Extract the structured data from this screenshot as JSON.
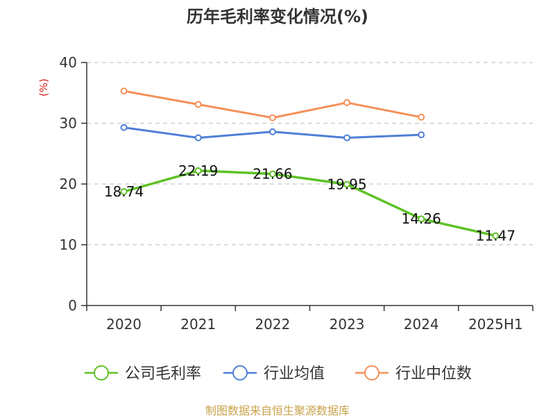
{
  "chart_data": {
    "type": "line",
    "title": "历年毛利率变化情况(%)",
    "ylabel": "(%)",
    "categories": [
      "2020",
      "2021",
      "2022",
      "2023",
      "2024",
      "2025H1"
    ],
    "ylim": [
      0,
      40
    ],
    "yticks": [
      0,
      10,
      20,
      30,
      40
    ],
    "grid": true,
    "legend_position": "bottom",
    "series": [
      {
        "name": "公司毛利率",
        "color": "#5ec126",
        "values": [
          18.74,
          22.19,
          21.66,
          19.95,
          14.26,
          11.47
        ],
        "labels": [
          "18.74",
          "22.19",
          "21.66",
          "19.95",
          "14.26",
          "11.47"
        ]
      },
      {
        "name": "行业均值",
        "color": "#4e7fd6",
        "values": [
          29.3,
          27.6,
          28.6,
          27.6,
          28.1,
          null
        ]
      },
      {
        "name": "行业中位数",
        "color": "#f59058",
        "values": [
          35.3,
          33.1,
          30.9,
          33.4,
          31.0,
          null
        ]
      }
    ]
  },
  "unit_color": "#d9221c",
  "source": "制图数据来自恒生聚源数据库"
}
